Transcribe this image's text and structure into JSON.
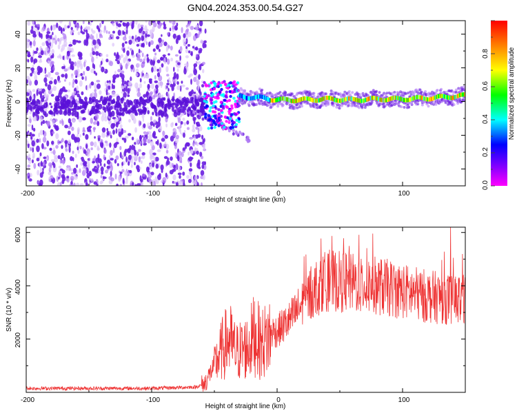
{
  "title": "GN04.2024.353.00.54.G27",
  "chart_data": [
    {
      "type": "heatmap",
      "description_series": "spectrogram of normalized spectral amplitude",
      "xlabel": "Height of straight line (km)",
      "ylabel": "Frequency (Hz)",
      "xlim": [
        -200,
        150
      ],
      "ylim": [
        -50,
        48
      ],
      "xticks": [
        "-200",
        "-100",
        "0",
        "100"
      ],
      "yticks": [
        "-40",
        "-20",
        "0",
        "20",
        "40"
      ],
      "colorbar": {
        "label": "Normalized spectral amplitude",
        "range": [
          0,
          1
        ],
        "ticks": [
          "0.0",
          "0.2",
          "0.4",
          "0.6",
          "0.8"
        ],
        "colormap": [
          "#ff00ff",
          "#8000ff",
          "#0000ff",
          "#00ffff",
          "#00ff00",
          "#ffff00",
          "#ff8000",
          "#ff0000"
        ]
      },
      "features": {
        "noise_region_x": [
          -200,
          -57
        ],
        "transition_x": [
          -58,
          -30
        ],
        "tone_line": {
          "x": [
            -30,
            -10,
            0,
            20,
            40,
            60,
            80,
            100,
            120,
            140,
            150
          ],
          "frequency_hz": [
            3,
            2,
            1,
            1,
            1.5,
            1,
            1.5,
            1.5,
            2,
            3,
            3.5
          ]
        },
        "lower_branch": {
          "x": [
            -75,
            -55,
            -45,
            -35,
            -25,
            -22
          ],
          "frequency_hz": [
            -5,
            -10,
            -14,
            -18,
            -21,
            -24
          ]
        }
      },
      "grid": false
    },
    {
      "type": "line",
      "xlabel": "Height of straight line (km)",
      "ylabel": "SNR (10 * v/v)",
      "xlim": [
        -200,
        150
      ],
      "ylim": [
        0,
        6200
      ],
      "xticks": [
        "-200",
        "-100",
        "0",
        "100"
      ],
      "yticks": [
        "2000",
        "4000",
        "6000"
      ],
      "color": "#ee3333",
      "series": [
        {
          "x": [
            -200,
            -150,
            -100,
            -65,
            -58,
            -48,
            -43,
            -38,
            -33,
            -28,
            -23,
            -18,
            -13,
            -8,
            -3,
            0,
            10,
            20,
            30,
            40,
            60,
            80,
            100,
            120,
            140,
            150
          ],
          "values": [
            150,
            150,
            150,
            200,
            300,
            1200,
            1700,
            2000,
            1500,
            1600,
            1700,
            2200,
            1800,
            2000,
            2300,
            2300,
            2700,
            3300,
            3900,
            4200,
            4100,
            4000,
            3800,
            3600,
            3500,
            3500
          ]
        }
      ],
      "grid": false
    }
  ]
}
